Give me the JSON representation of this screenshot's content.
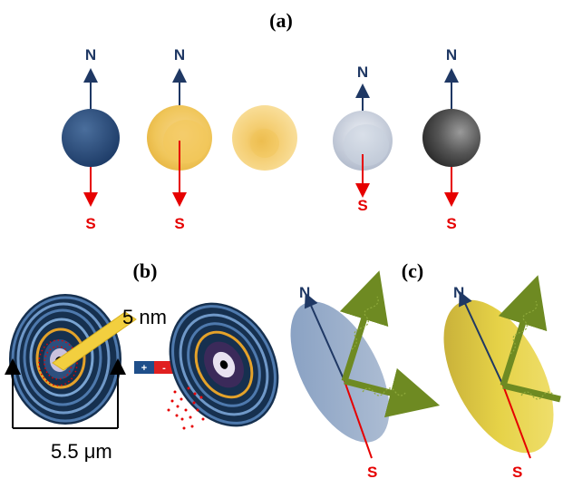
{
  "labels": {
    "panel_a": "(a)",
    "panel_b": "(b)",
    "panel_c": "(c)"
  },
  "poles": {
    "north": "N",
    "south": "S"
  },
  "panel_b": {
    "inner_size": "5 nm",
    "outer_size": "5.5 μm",
    "plus": "+",
    "minus": "-"
  },
  "colors": {
    "north_arrow": "#1f3864",
    "south_arrow": "#e60000",
    "spin_wave": "#7a9a2a"
  }
}
